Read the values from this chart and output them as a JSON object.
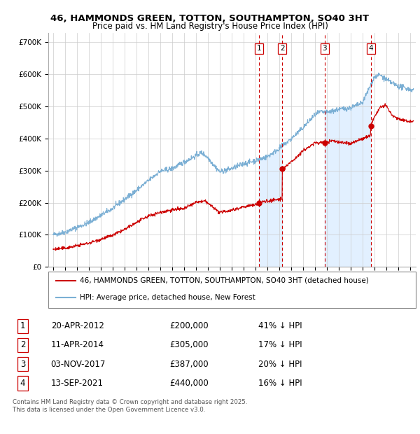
{
  "title1": "46, HAMMONDS GREEN, TOTTON, SOUTHAMPTON, SO40 3HT",
  "title2": "Price paid vs. HM Land Registry's House Price Index (HPI)",
  "background_color": "#ffffff",
  "plot_bg_color": "#ffffff",
  "grid_color": "#cccccc",
  "hpi_color": "#7bafd4",
  "hpi_fill_color": "#ddeeff",
  "price_color": "#cc0000",
  "transactions": [
    {
      "label": "1",
      "date_x": 2012.3,
      "price": 200000,
      "date_str": "20-APR-2012",
      "pct": "41%",
      "dir": "↓"
    },
    {
      "label": "2",
      "date_x": 2014.28,
      "price": 305000,
      "date_str": "11-APR-2014",
      "pct": "17%",
      "dir": "↓"
    },
    {
      "label": "3",
      "date_x": 2017.84,
      "price": 387000,
      "date_str": "03-NOV-2017",
      "pct": "20%",
      "dir": "↓"
    },
    {
      "label": "4",
      "date_x": 2021.71,
      "price": 440000,
      "date_str": "13-SEP-2021",
      "pct": "16%",
      "dir": "↓"
    }
  ],
  "legend_line1": "46, HAMMONDS GREEN, TOTTON, SOUTHAMPTON, SO40 3HT (detached house)",
  "legend_line2": "HPI: Average price, detached house, New Forest",
  "footnote": "Contains HM Land Registry data © Crown copyright and database right 2025.\nThis data is licensed under the Open Government Licence v3.0.",
  "xmin": 1994.6,
  "xmax": 2025.5,
  "ymin": 0,
  "ymax": 730000
}
